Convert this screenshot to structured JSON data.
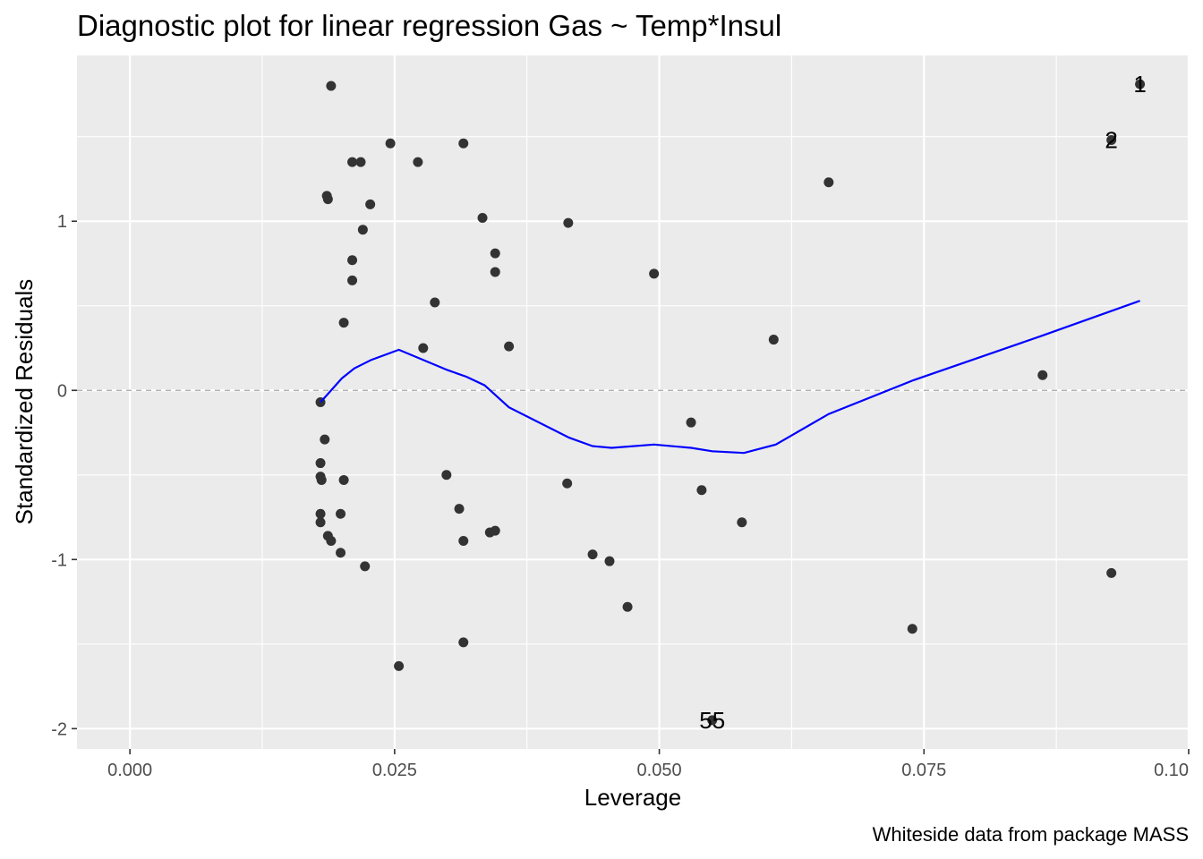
{
  "chart_data": {
    "type": "scatter",
    "title": "Diagnostic plot for linear regression  Gas ~ Temp*Insul",
    "caption": "Whiteside data from package MASS",
    "xlabel": "Leverage",
    "ylabel": "Standardized Residuals",
    "xlim": [
      -0.005,
      0.1
    ],
    "ylim": [
      -2.12,
      1.98
    ],
    "x_ticks": [
      {
        "value": 0.0,
        "label": "0.000"
      },
      {
        "value": 0.025,
        "label": "0.025"
      },
      {
        "value": 0.05,
        "label": "0.050"
      },
      {
        "value": 0.075,
        "label": "0.075"
      },
      {
        "value": 0.1,
        "label": "0.10"
      }
    ],
    "y_ticks": [
      {
        "value": -2,
        "label": "-2"
      },
      {
        "value": -1,
        "label": "-1"
      },
      {
        "value": 0,
        "label": "0"
      },
      {
        "value": 1,
        "label": "1"
      }
    ],
    "x_minor_ticks": [
      0.0125,
      0.0375,
      0.0625,
      0.0875
    ],
    "y_minor_ticks": [
      -1.5,
      -0.5,
      0.5,
      1.5
    ],
    "reference_line": {
      "y": 0,
      "style": "dashed",
      "color": "#a6a6a6"
    },
    "colors": {
      "panel": "#ebebeb",
      "grid": "#ffffff",
      "points": "#333333",
      "smooth": "#0000ff"
    },
    "grid": true,
    "legend": "none",
    "points": [
      {
        "x": 0.019,
        "y": 1.8
      },
      {
        "x": 0.0246,
        "y": 1.46
      },
      {
        "x": 0.0315,
        "y": 1.46
      },
      {
        "x": 0.021,
        "y": 1.35
      },
      {
        "x": 0.0218,
        "y": 1.35
      },
      {
        "x": 0.0272,
        "y": 1.35
      },
      {
        "x": 0.0186,
        "y": 1.15
      },
      {
        "x": 0.0187,
        "y": 1.13
      },
      {
        "x": 0.0227,
        "y": 1.1
      },
      {
        "x": 0.0333,
        "y": 1.02
      },
      {
        "x": 0.0414,
        "y": 0.99
      },
      {
        "x": 0.022,
        "y": 0.95
      },
      {
        "x": 0.0345,
        "y": 0.81
      },
      {
        "x": 0.021,
        "y": 0.77
      },
      {
        "x": 0.0345,
        "y": 0.7
      },
      {
        "x": 0.0495,
        "y": 0.69
      },
      {
        "x": 0.021,
        "y": 0.65
      },
      {
        "x": 0.0288,
        "y": 0.52
      },
      {
        "x": 0.0202,
        "y": 0.4
      },
      {
        "x": 0.0608,
        "y": 0.3
      },
      {
        "x": 0.0277,
        "y": 0.25
      },
      {
        "x": 0.0358,
        "y": 0.26
      },
      {
        "x": 0.066,
        "y": 1.23
      },
      {
        "x": 0.0862,
        "y": 0.09
      },
      {
        "x": 0.018,
        "y": -0.07
      },
      {
        "x": 0.0184,
        "y": -0.29
      },
      {
        "x": 0.018,
        "y": -0.43
      },
      {
        "x": 0.018,
        "y": -0.51
      },
      {
        "x": 0.0181,
        "y": -0.53
      },
      {
        "x": 0.0202,
        "y": -0.53
      },
      {
        "x": 0.0299,
        "y": -0.5
      },
      {
        "x": 0.0413,
        "y": -0.55
      },
      {
        "x": 0.053,
        "y": -0.19
      },
      {
        "x": 0.054,
        "y": -0.59
      },
      {
        "x": 0.018,
        "y": -0.73
      },
      {
        "x": 0.0199,
        "y": -0.73
      },
      {
        "x": 0.018,
        "y": -0.78
      },
      {
        "x": 0.0311,
        "y": -0.7
      },
      {
        "x": 0.0578,
        "y": -0.78
      },
      {
        "x": 0.0187,
        "y": -0.86
      },
      {
        "x": 0.019,
        "y": -0.89
      },
      {
        "x": 0.0315,
        "y": -0.89
      },
      {
        "x": 0.034,
        "y": -0.84
      },
      {
        "x": 0.0345,
        "y": -0.83
      },
      {
        "x": 0.0199,
        "y": -0.96
      },
      {
        "x": 0.0222,
        "y": -1.04
      },
      {
        "x": 0.0437,
        "y": -0.97
      },
      {
        "x": 0.0453,
        "y": -1.01
      },
      {
        "x": 0.047,
        "y": -1.28
      },
      {
        "x": 0.0315,
        "y": -1.49
      },
      {
        "x": 0.0254,
        "y": -1.63
      },
      {
        "x": 0.0739,
        "y": -1.41
      },
      {
        "x": 0.0927,
        "y": -1.08
      },
      {
        "x": 0.055,
        "y": -1.95
      },
      {
        "x": 0.0927,
        "y": 1.48
      },
      {
        "x": 0.0954,
        "y": 1.81
      }
    ],
    "labeled_points": [
      {
        "x": 0.0954,
        "y": 1.81,
        "label": "1"
      },
      {
        "x": 0.0927,
        "y": 1.48,
        "label": "2"
      },
      {
        "x": 0.055,
        "y": -1.95,
        "label": "55"
      }
    ],
    "smooth_line": {
      "x": [
        0.018,
        0.02,
        0.0212,
        0.0228,
        0.0254,
        0.03,
        0.0318,
        0.0335,
        0.0358,
        0.0415,
        0.0437,
        0.0455,
        0.0495,
        0.053,
        0.055,
        0.058,
        0.061,
        0.066,
        0.074,
        0.086,
        0.0954
      ],
      "y": [
        -0.07,
        0.07,
        0.13,
        0.18,
        0.24,
        0.12,
        0.08,
        0.03,
        -0.1,
        -0.28,
        -0.33,
        -0.34,
        -0.32,
        -0.34,
        -0.36,
        -0.37,
        -0.32,
        -0.14,
        0.06,
        0.32,
        0.53
      ]
    }
  }
}
